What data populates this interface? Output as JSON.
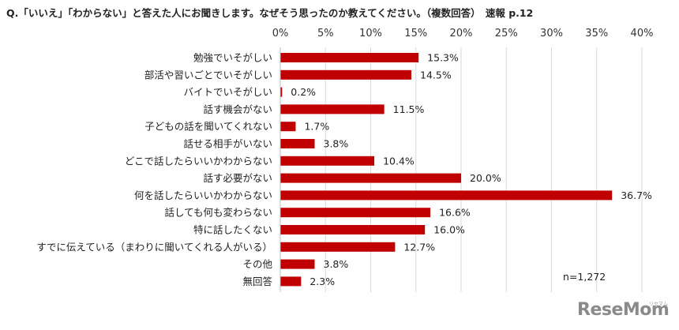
{
  "header": {
    "question": "Q.「いいえ」「わからない」と答えた人にお聞きします。なぜそう思ったのか教えてください。（複数回答）　速報 p.12"
  },
  "chart_data": {
    "type": "bar",
    "orientation": "horizontal",
    "categories": [
      "勉強でいそがしい",
      "部活や習いごとでいそがしい",
      "バイトでいそがしい",
      "話す機会がない",
      "子どもの話を聞いてくれない",
      "話せる相手がいない",
      "どこで話したらいいかわからない",
      "話す必要がない",
      "何を話したらいいかわからない",
      "話しても何も変わらない",
      "特に話したくない",
      "すでに伝えている（まわりに聞いてくれる人がいる）",
      "その他",
      "無回答"
    ],
    "values": [
      15.3,
      14.5,
      0.2,
      11.5,
      1.7,
      3.8,
      10.4,
      20.0,
      36.7,
      16.6,
      16.0,
      12.7,
      3.8,
      2.3
    ],
    "value_labels": [
      "15.3%",
      "14.5%",
      "0.2%",
      "11.5%",
      "1.7%",
      "3.8%",
      "10.4%",
      "20.0%",
      "36.7%",
      "16.6%",
      "16.0%",
      "12.7%",
      "3.8%",
      "2.3%"
    ],
    "xticks": [
      0,
      5,
      10,
      15,
      20,
      25,
      30,
      35,
      40
    ],
    "xtick_labels": [
      "0%",
      "5%",
      "10%",
      "15%",
      "20%",
      "25%",
      "30%",
      "35%",
      "40%"
    ],
    "xlim": [
      0,
      40
    ],
    "axis_position": "top",
    "grid": true,
    "bar_color": "#c00000",
    "grid_color": "#d9d9d9",
    "annotation": "n=1,272"
  },
  "watermark": {
    "logo_text": "ReseMom",
    "logo_sub": "リセマム"
  }
}
